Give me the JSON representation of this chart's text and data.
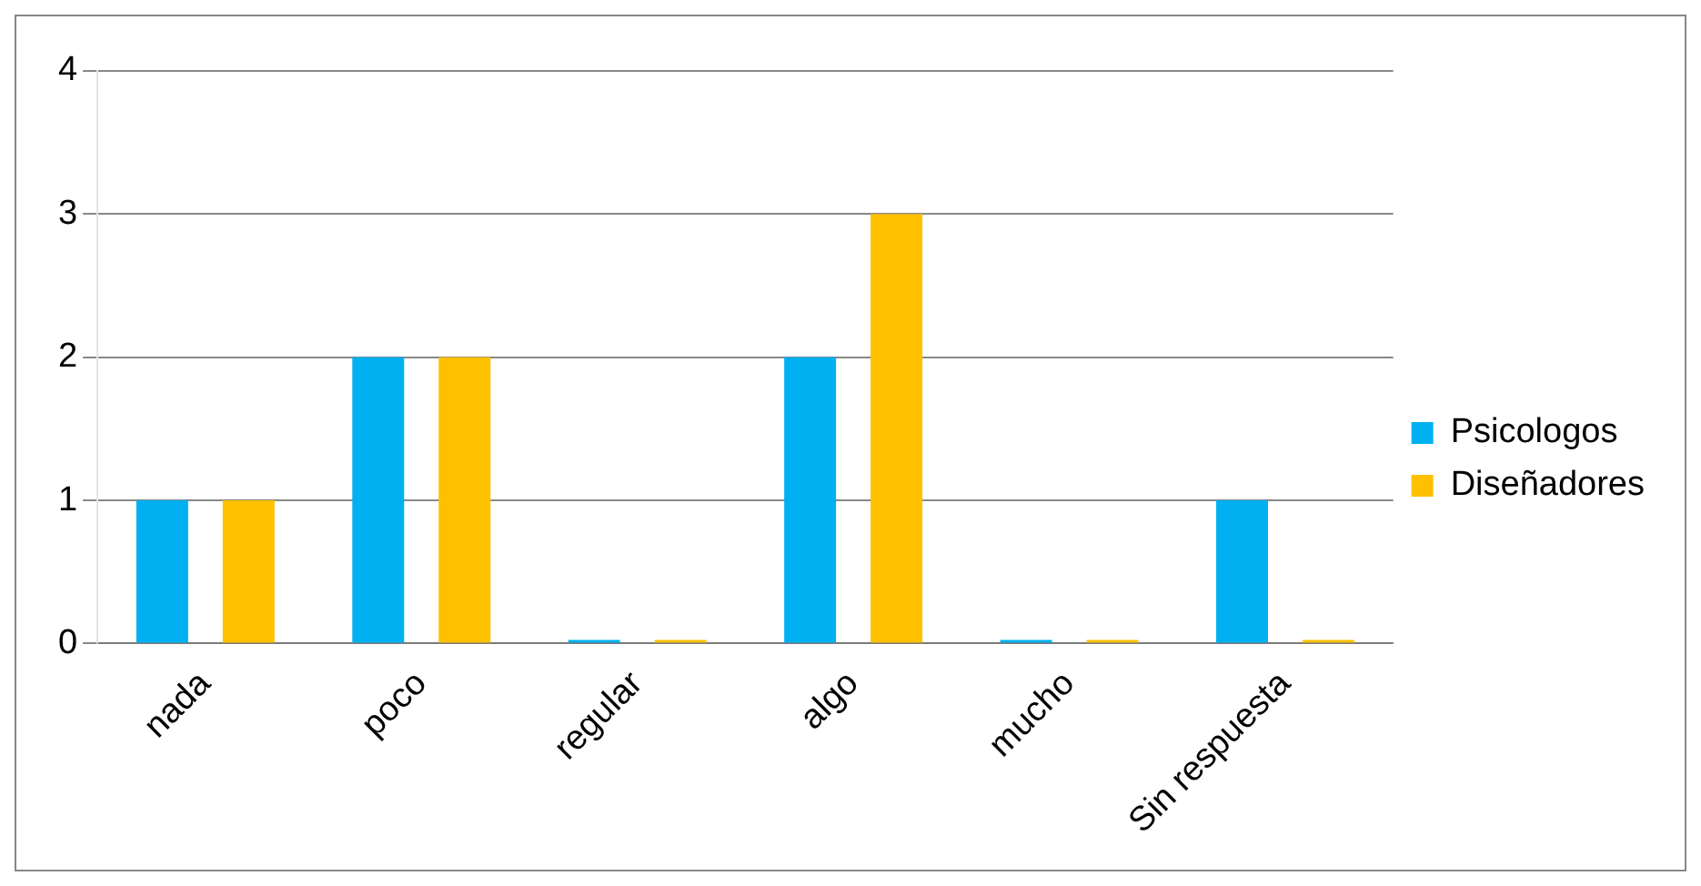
{
  "chart_data": {
    "type": "bar",
    "categories": [
      "nada",
      "poco",
      "regular",
      "algo",
      "mucho",
      "Sin respuesta"
    ],
    "series": [
      {
        "name": "Psicologos",
        "color": "#00b0f0",
        "values": [
          1,
          2,
          0,
          2,
          0,
          1
        ]
      },
      {
        "name": "Diseñadores",
        "color": "#ffc000",
        "values": [
          1,
          2,
          0,
          3,
          0,
          0
        ]
      }
    ],
    "ylim": [
      0,
      4
    ],
    "yticks": [
      0,
      1,
      2,
      3,
      4
    ],
    "grid": "y",
    "legend": "right"
  }
}
